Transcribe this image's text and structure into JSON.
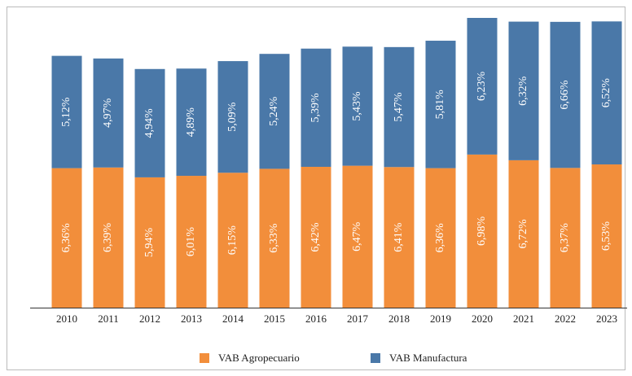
{
  "chart_data": {
    "type": "stacked_bar",
    "categories": [
      "2010",
      "2011",
      "2012",
      "2013",
      "2014",
      "2015",
      "2016",
      "2017",
      "2018",
      "2019",
      "2020",
      "2021",
      "2022",
      "2023"
    ],
    "series": [
      {
        "name": "VAB Agropecuario",
        "color": "#f28e3b",
        "values": [
          6.36,
          6.39,
          5.94,
          6.01,
          6.15,
          6.33,
          6.42,
          6.47,
          6.41,
          6.36,
          6.98,
          6.72,
          6.37,
          6.53
        ],
        "value_labels": [
          "6,36%",
          "6,39%",
          "5,94%",
          "6,01%",
          "6,15%",
          "6,33%",
          "6,42%",
          "6,47%",
          "6,41%",
          "6,36%",
          "6,98%",
          "6,72%",
          "6,37%",
          "6,53%"
        ]
      },
      {
        "name": "VAB Manufactura",
        "color": "#4a78a8",
        "values": [
          5.12,
          4.97,
          4.94,
          4.89,
          5.09,
          5.24,
          5.39,
          5.43,
          5.47,
          5.81,
          6.23,
          6.32,
          6.66,
          6.52
        ],
        "value_labels": [
          "5,12%",
          "4,97%",
          "4,94%",
          "4,89%",
          "5,09%",
          "5,24%",
          "5,39%",
          "5,43%",
          "5,47%",
          "5,81%",
          "6,23%",
          "6,32%",
          "6,66%",
          "6,52%"
        ]
      }
    ]
  }
}
